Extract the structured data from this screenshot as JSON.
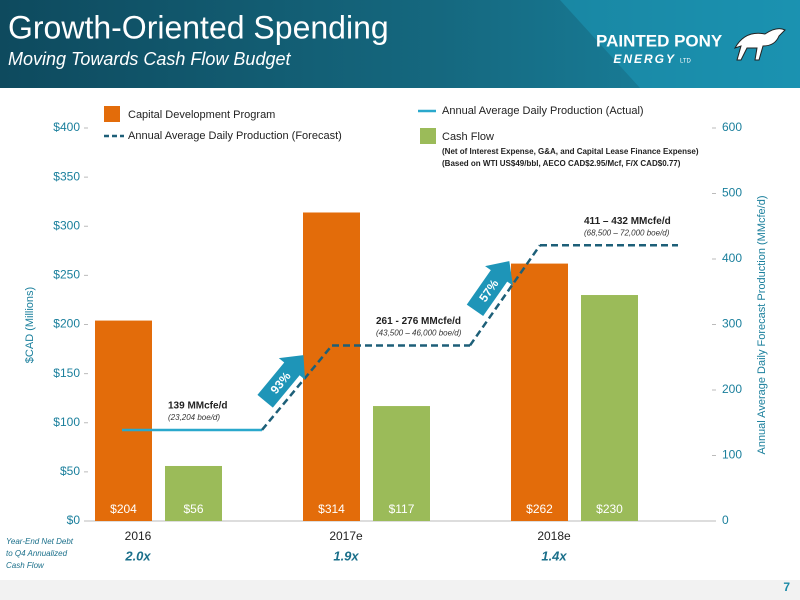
{
  "header": {
    "title": "Growth-Oriented Spending",
    "subtitle": "Moving Towards Cash Flow Budget",
    "logo": "PAINTED PONY",
    "logo_sub": "ENERGY",
    "logo_ltd": "LTD"
  },
  "page_number": "7",
  "chart_data": {
    "type": "bar",
    "categories": [
      "2016",
      "2017e",
      "2018e"
    ],
    "series": [
      {
        "name": "Capital Development Program",
        "color": "#e36c0a",
        "values": [
          204,
          314,
          262
        ],
        "value_labels": [
          "$204",
          "$314",
          "$262"
        ]
      },
      {
        "name": "Cash Flow",
        "color": "#9bbb59",
        "values": [
          56,
          117,
          230
        ],
        "value_labels": [
          "$56",
          "$117",
          "$230"
        ]
      },
      {
        "name": "Annual Average Daily Production (Actual)",
        "type": "line",
        "axis": "y2",
        "color": "#2aa8cc",
        "values": [
          139,
          null,
          null
        ]
      },
      {
        "name": "Annual Average Daily Production (Forecast)",
        "type": "line",
        "style": "dashed",
        "axis": "y2",
        "color": "#1d5f78",
        "values": [
          139,
          268,
          421
        ]
      }
    ],
    "ylim": [
      0,
      400
    ],
    "yticks": [
      {
        "value": 0,
        "label": "$0"
      },
      {
        "value": 50,
        "label": "$50"
      },
      {
        "value": 100,
        "label": "$100"
      },
      {
        "value": 150,
        "label": "$150"
      },
      {
        "value": 200,
        "label": "$200"
      },
      {
        "value": 250,
        "label": "$250"
      },
      {
        "value": 300,
        "label": "$300"
      },
      {
        "value": 350,
        "label": "$350"
      },
      {
        "value": 400,
        "label": "$400"
      }
    ],
    "y2lim": [
      0,
      600
    ],
    "y2ticks": [
      0,
      100,
      200,
      300,
      400,
      500,
      600
    ],
    "ylabel": "$CAD (Millions)",
    "y2label": "Annual Average Daily Forecast Production (MMcfe/d)",
    "legend_note": [
      "(Net of Interest Expense, G&A, and Capital Lease Finance Expense)",
      "(Based on WTI US$49/bbl, AECO CAD$2.95/Mcf, F/X CAD$0.77)"
    ],
    "annotations": [
      {
        "text": "139 MMcfe/d",
        "subtext": "(23,204 boe/d)"
      },
      {
        "text": "261 - 276 MMcfe/d",
        "subtext": "(43,500 – 46,000 boe/d)"
      },
      {
        "text": "411 – 432 MMcfe/d",
        "subtext": "(68,500 – 72,000 boe/d)"
      }
    ],
    "growth_labels": [
      "93%",
      "57%"
    ],
    "footnote": {
      "lines": [
        "Year-End Net Debt",
        "to Q4 Annualized",
        "Cash Flow"
      ],
      "values": [
        "2.0x",
        "1.9x",
        "1.4x"
      ]
    }
  }
}
